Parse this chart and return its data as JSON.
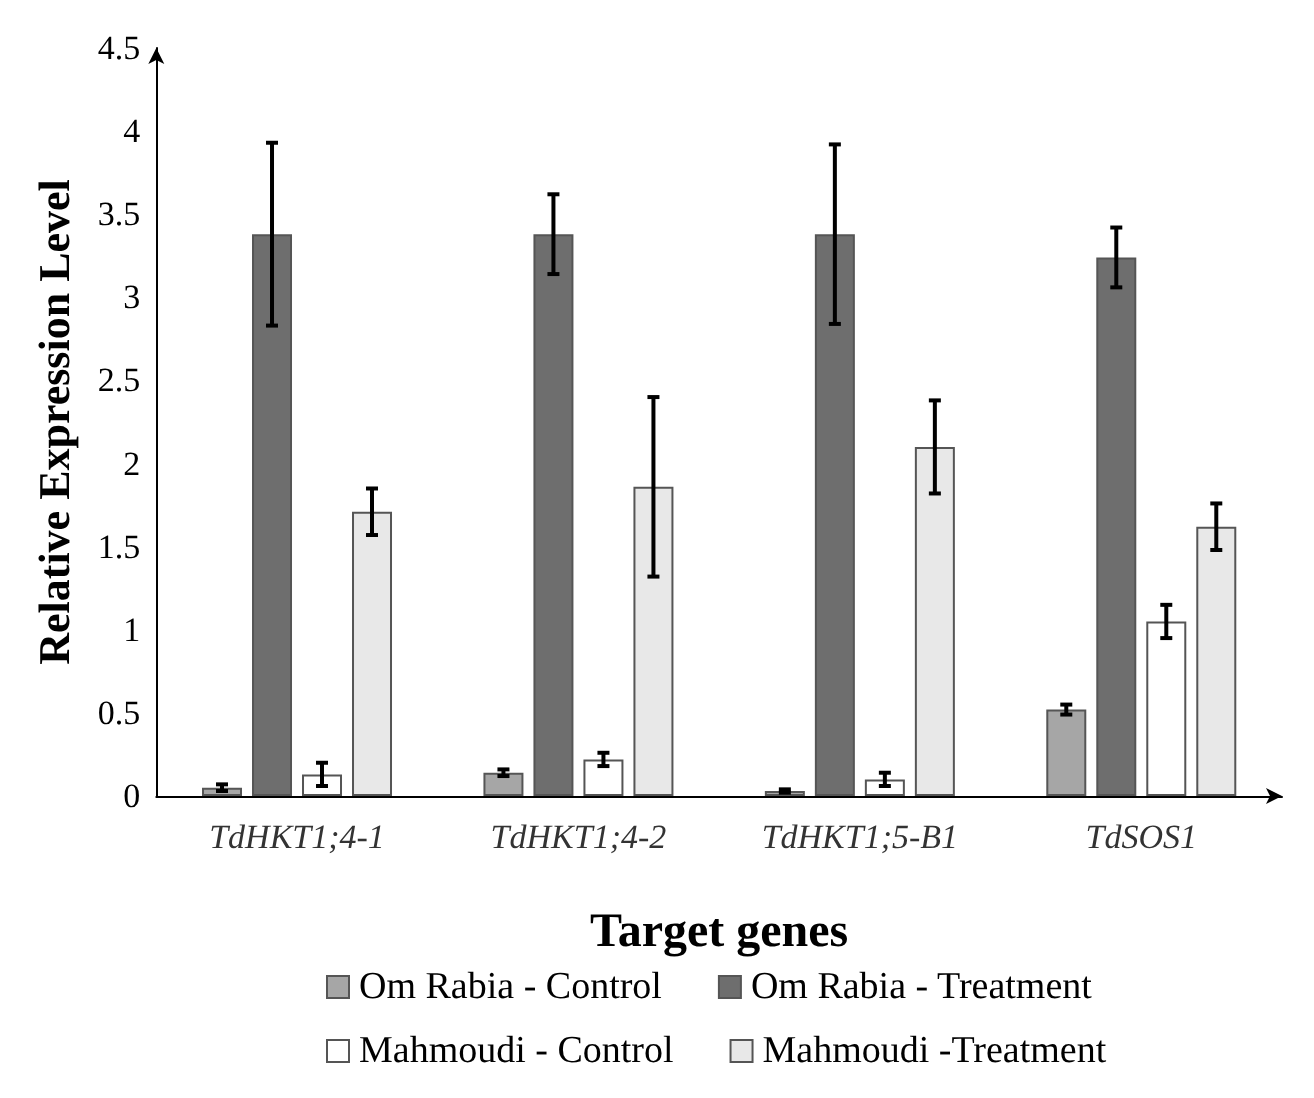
{
  "chart_data": {
    "type": "bar",
    "xlabel": "Target genes",
    "ylabel": "Relative Expression Level",
    "categories": [
      "TdHKT1;4-1",
      "TdHKT1;4-2",
      "TdHKT1;5-B1",
      "TdSOS1"
    ],
    "series": [
      {
        "name": "Om Rabia - Control",
        "color": "#a6a6a6",
        "values": [
          0.05,
          0.14,
          0.03,
          0.52
        ],
        "errors": [
          0.02,
          0.02,
          0.01,
          0.03
        ]
      },
      {
        "name": "Om Rabia - Treatment",
        "color": "#6e6e6e",
        "values": [
          3.38,
          3.38,
          3.38,
          3.24
        ],
        "errors": [
          0.55,
          0.24,
          0.54,
          0.18
        ]
      },
      {
        "name": "Mahmoudi - Control",
        "color": "#ffffff",
        "values": [
          0.13,
          0.22,
          0.1,
          1.05
        ],
        "errors": [
          0.07,
          0.04,
          0.04,
          0.1
        ]
      },
      {
        "name": "Mahmoudi -Treatment",
        "color": "#e8e8e8",
        "values": [
          1.71,
          1.86,
          2.1,
          1.62
        ],
        "errors": [
          0.14,
          0.54,
          0.28,
          0.14
        ]
      }
    ],
    "ylim": [
      0,
      4.5
    ],
    "yticks": [
      0,
      0.5,
      1,
      1.5,
      2,
      2.5,
      3,
      3.5,
      4,
      4.5
    ],
    "grid": false,
    "legend": "bottom"
  }
}
